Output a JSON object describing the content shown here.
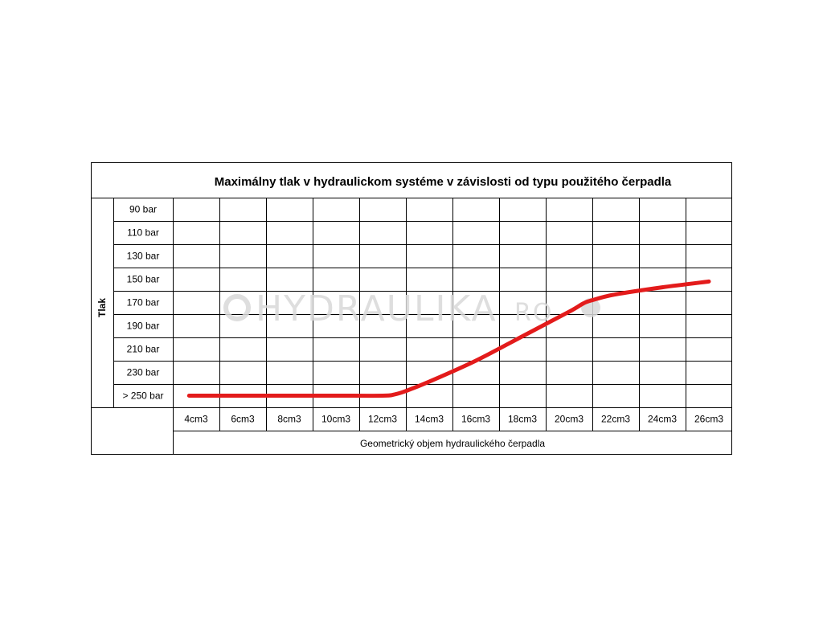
{
  "chart_data": {
    "type": "line",
    "title": "Maximálny tlak v hydraulickom systéme v závislosti od typu použitého čerpadla",
    "xlabel": "Geometrický objem hydraulického čerpadla",
    "ylabel": "Tlak",
    "x_ticks": [
      "4cm3",
      "6cm3",
      "8cm3",
      "10cm3",
      "12cm3",
      "14cm3",
      "16cm3",
      "18cm3",
      "20cm3",
      "22cm3",
      "24cm3",
      "26cm3"
    ],
    "y_ticks": [
      "90 bar",
      "110 bar",
      "130 bar",
      "150 bar",
      "170 bar",
      "190 bar",
      "210 bar",
      "230 bar",
      "> 250 bar"
    ],
    "y_reversed": true,
    "grid": true,
    "series": [
      {
        "color": "#e31b1b",
        "x": [
          3.7,
          6,
          8,
          10,
          12,
          12.5,
          13,
          14,
          16,
          18,
          20,
          20.6,
          21,
          22,
          24,
          26
        ],
        "y": [
          250,
          250,
          250,
          250,
          250,
          249,
          246,
          238,
          220,
          199,
          178,
          171,
          168,
          163,
          157,
          152
        ]
      }
    ]
  },
  "watermark": {
    "text": "HYDRAULIKA",
    "suffix": "RO"
  }
}
